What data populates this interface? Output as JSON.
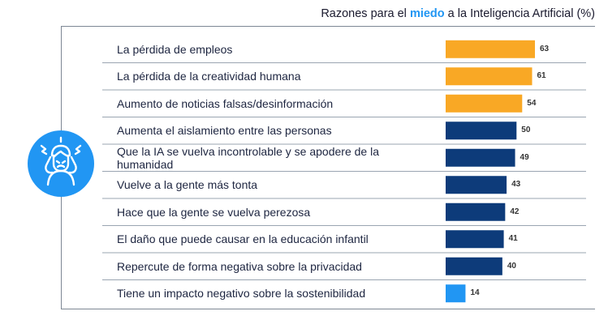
{
  "title": {
    "before": "Razones para el ",
    "highlight": "miedo",
    "after": " a la Inteligencia Artificial (%)"
  },
  "icon": "stressed-person-icon",
  "colors": {
    "top": "#f9a825",
    "mid": "#0d3b7a",
    "low": "#2196f3",
    "divider": "#9aa5b1"
  },
  "chart_data": {
    "type": "bar",
    "orientation": "horizontal",
    "title": "Razones para el miedo a la Inteligencia Artificial (%)",
    "categories": [
      "La pérdida de empleos",
      "La pérdida de la creatividad humana",
      "Aumento de noticias falsas/desinformación",
      "Aumenta el aislamiento entre las personas",
      "Que la IA se vuelva incontrolable y se apodere de la humanidad",
      "Vuelve a la gente más tonta",
      "Hace que la gente se vuelva perezosa",
      "El daño que puede causar en la educación infantil",
      "Repercute de forma negativa sobre la privacidad",
      "Tiene un impacto negativo sobre la sostenibilidad"
    ],
    "values": [
      63,
      61,
      54,
      50,
      49,
      43,
      42,
      41,
      40,
      14
    ],
    "bar_colors": [
      "#f9a825",
      "#f9a825",
      "#f9a825",
      "#0d3b7a",
      "#0d3b7a",
      "#0d3b7a",
      "#0d3b7a",
      "#0d3b7a",
      "#0d3b7a",
      "#2196f3"
    ],
    "xlim": [
      0,
      63
    ],
    "grid": false,
    "legend": "none"
  }
}
